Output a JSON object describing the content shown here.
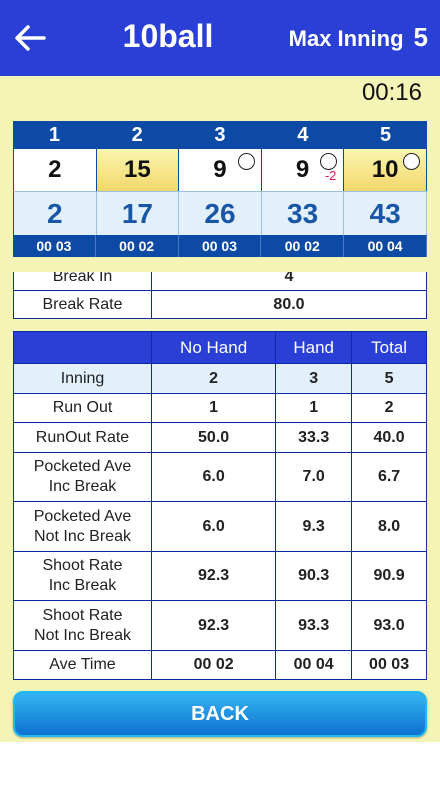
{
  "header": {
    "title": "10ball",
    "max_label": "Max Inning",
    "max_value": "5"
  },
  "timer": "00:16",
  "innings": {
    "numbers": [
      "1",
      "2",
      "3",
      "4",
      "5"
    ],
    "scores": [
      {
        "value": "2",
        "highlight": false,
        "circle": false,
        "minus": ""
      },
      {
        "value": "15",
        "highlight": true,
        "circle": false,
        "minus": ""
      },
      {
        "value": "9",
        "highlight": false,
        "circle": true,
        "minus": ""
      },
      {
        "value": "9",
        "highlight": false,
        "circle": true,
        "minus": "-2"
      },
      {
        "value": "10",
        "highlight": true,
        "circle": true,
        "minus": ""
      }
    ],
    "totals": [
      "2",
      "17",
      "26",
      "33",
      "43"
    ],
    "times": [
      "00 03",
      "00 02",
      "00 03",
      "00 02",
      "00 04"
    ]
  },
  "break_stats": {
    "rows": [
      {
        "label": "Break In",
        "value": "4"
      },
      {
        "label": "Break Rate",
        "value": "80.0"
      }
    ]
  },
  "stats": {
    "headers": [
      "",
      "No Hand",
      "Hand",
      "Total"
    ],
    "rows": [
      {
        "label": "Inning",
        "no_hand": "2",
        "hand": "3",
        "total": "5"
      },
      {
        "label": "Run Out",
        "no_hand": "1",
        "hand": "1",
        "total": "2"
      },
      {
        "label": "RunOut Rate",
        "no_hand": "50.0",
        "hand": "33.3",
        "total": "40.0"
      },
      {
        "label": "Pocketed Ave\nInc Break",
        "no_hand": "6.0",
        "hand": "7.0",
        "total": "6.7"
      },
      {
        "label": "Pocketed Ave\nNot Inc Break",
        "no_hand": "6.0",
        "hand": "9.3",
        "total": "8.0"
      },
      {
        "label": "Shoot Rate\nInc Break",
        "no_hand": "92.3",
        "hand": "90.3",
        "total": "90.9"
      },
      {
        "label": "Shoot Rate\nNot Inc Break",
        "no_hand": "92.3",
        "hand": "93.3",
        "total": "93.0"
      },
      {
        "label": "Ave Time",
        "no_hand": "00 02",
        "hand": "00 04",
        "total": "00 03"
      }
    ]
  },
  "back_button": "BACK",
  "colors": {
    "appbar": "#2a3fd6",
    "background": "#f4f4b6",
    "accent_red": "#e3175d"
  },
  "icons": {
    "back": "arrow-left-icon",
    "marker": "circle-icon"
  }
}
